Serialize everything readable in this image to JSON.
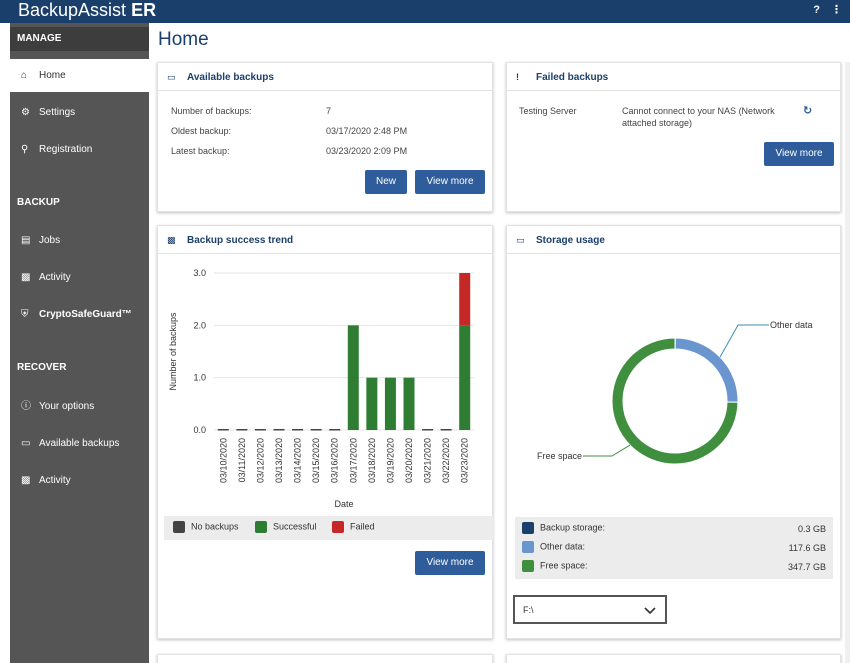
{
  "app": {
    "brand": "BackupAssist",
    "brand_suffix": "ER"
  },
  "topbar": {
    "help_icon": "help-icon",
    "menu_icon": "kebab-icon",
    "help_glyph": "?",
    "menu_glyph": "⋮"
  },
  "sidebar": {
    "sections": [
      {
        "title": "MANAGE",
        "items": [
          {
            "label": "Home",
            "icon": "home-icon"
          },
          {
            "label": "Settings",
            "icon": "gear-icon"
          },
          {
            "label": "Registration",
            "icon": "key-icon"
          }
        ]
      },
      {
        "title": "BACKUP",
        "items": [
          {
            "label": "Jobs",
            "icon": "jobs-icon"
          },
          {
            "label": "Activity",
            "icon": "activity-icon"
          },
          {
            "label": "CryptoSafeGuard™",
            "icon": "shield-icon"
          }
        ]
      },
      {
        "title": "RECOVER",
        "items": [
          {
            "label": "Your options",
            "icon": "info-icon"
          },
          {
            "label": "Available backups",
            "icon": "drive-icon"
          },
          {
            "label": "Activity",
            "icon": "activity-icon"
          }
        ]
      }
    ]
  },
  "page": {
    "title": "Home"
  },
  "available_backups": {
    "title": "Available backups",
    "rows": [
      {
        "label": "Number of backups:",
        "value": "7"
      },
      {
        "label": "Oldest backup:",
        "value": "03/17/2020 2:48 PM"
      },
      {
        "label": "Latest backup:",
        "value": "03/23/2020 2:09 PM"
      }
    ],
    "new_label": "New",
    "view_more_label": "View more"
  },
  "failed_backups": {
    "title": "Failed backups",
    "server": "Testing Server",
    "message_line1": "Cannot connect to your NAS (Network",
    "message_line2": "attached storage)",
    "view_more_label": "View more"
  },
  "trend": {
    "title": "Backup success trend",
    "view_more_label": "View more",
    "legend": [
      {
        "label": "No backups",
        "color": "#444444"
      },
      {
        "label": "Successful",
        "color": "#2e7d32"
      },
      {
        "label": "Failed",
        "color": "#c62828"
      }
    ]
  },
  "chart_data": {
    "type": "bar",
    "title": "",
    "xlabel": "Date",
    "ylabel": "Number of backups",
    "ylim": [
      0,
      3
    ],
    "yticks": [
      "0.0",
      "1.0",
      "2.0",
      "3.0"
    ],
    "grid": true,
    "categories": [
      "03/10/2020",
      "03/11/2020",
      "03/12/2020",
      "03/13/2020",
      "03/14/2020",
      "03/15/2020",
      "03/16/2020",
      "03/17/2020",
      "03/18/2020",
      "03/19/2020",
      "03/20/2020",
      "03/21/2020",
      "03/22/2020",
      "03/23/2020"
    ],
    "stacked": true,
    "series": [
      {
        "name": "Successful",
        "color": "#2e7d32",
        "values": [
          0,
          0,
          0,
          0,
          0,
          0,
          0,
          2,
          1,
          1,
          1,
          0,
          0,
          2
        ]
      },
      {
        "name": "Failed",
        "color": "#c62828",
        "values": [
          0,
          0,
          0,
          0,
          0,
          0,
          0,
          0,
          0,
          0,
          0,
          0,
          0,
          1
        ]
      }
    ]
  },
  "storage": {
    "title": "Storage usage",
    "donut": {
      "type": "pie",
      "slices": [
        {
          "name": "Backup storage",
          "value": 0.3,
          "color": "#1b3f6b"
        },
        {
          "name": "Other data",
          "value": 117.6,
          "color": "#6a95cf"
        },
        {
          "name": "Free space",
          "value": 347.7,
          "color": "#3f8f3f"
        }
      ],
      "callouts": [
        "Other data",
        "Free space"
      ]
    },
    "rows": [
      {
        "label": "Backup storage:",
        "value": "0.3 GB",
        "color": "#1b3f6b"
      },
      {
        "label": "Other data:",
        "value": "117.6 GB",
        "color": "#6a95cf"
      },
      {
        "label": "Free space:",
        "value": "347.7 GB",
        "color": "#3f8f3f"
      }
    ],
    "drive_selected": "F:\\"
  }
}
